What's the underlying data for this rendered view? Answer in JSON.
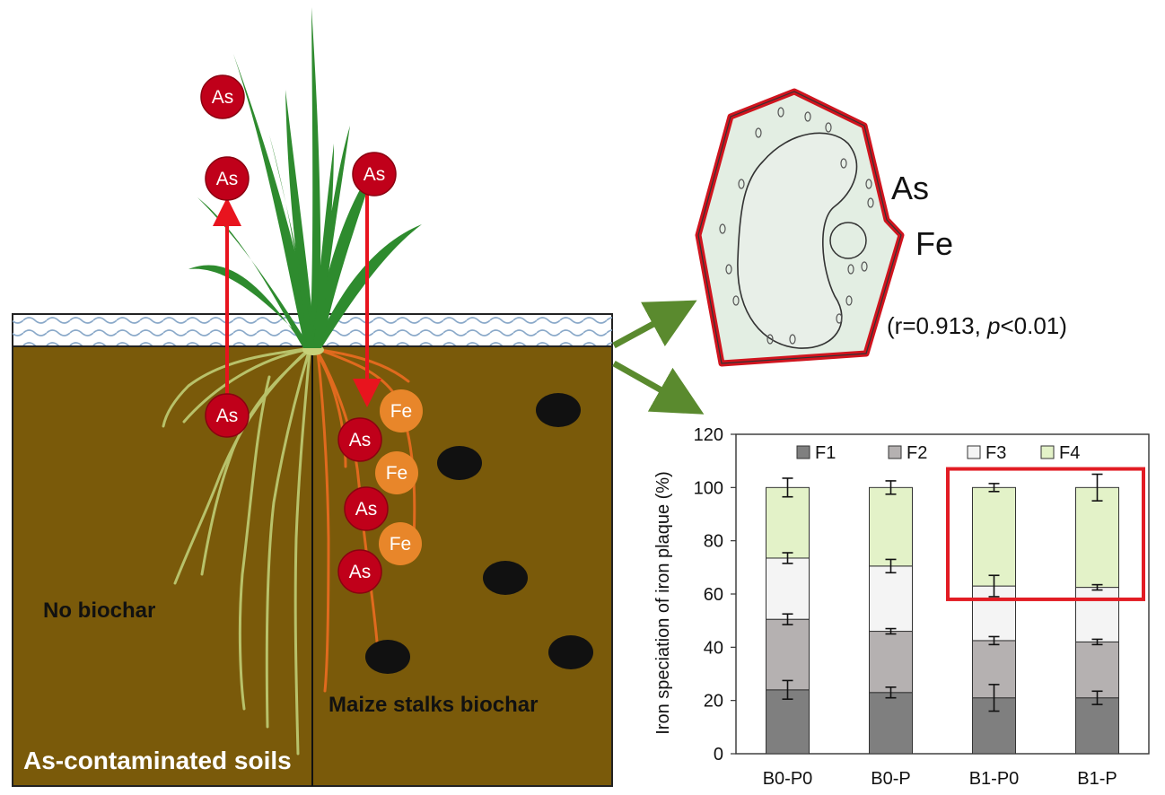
{
  "diagram": {
    "soil_label": "As-contaminated soils",
    "no_biochar_label": "No biochar",
    "biochar_label": "Maize stalks biochar",
    "ion_as": "As",
    "ion_fe": "Fe",
    "cell_label_as": "As",
    "cell_label_fe": "Fe",
    "correlation_prefix": "(r=0.913, ",
    "correlation_p": "p",
    "correlation_suffix": "<0.01)",
    "colors": {
      "soil": "#7a5a0a",
      "as_ion": "#c0001a",
      "fe_ion": "#e8862a",
      "arrow": "#e8141e",
      "leaf": "#2e8b2e",
      "cell_wall": "#d0141e",
      "cell_fill": "#e3eee3",
      "highlight_box": "#e21c24"
    }
  },
  "chart_data": {
    "type": "bar",
    "stacked": true,
    "categories": [
      "B0-P0",
      "B0-P",
      "B1-P0",
      "B1-P"
    ],
    "series": [
      {
        "name": "F1",
        "values": [
          24,
          23,
          21,
          21
        ],
        "errors": [
          3.5,
          2,
          5,
          2.5
        ],
        "color": "#7f7f7f"
      },
      {
        "name": "F2",
        "values": [
          26.5,
          23,
          21.5,
          21
        ],
        "errors": [
          2,
          1,
          1.5,
          1
        ],
        "color": "#b5b1b1"
      },
      {
        "name": "F3",
        "values": [
          23,
          24.5,
          20.5,
          20.5
        ],
        "errors": [
          2,
          2.5,
          4,
          1
        ],
        "color": "#f4f4f4"
      },
      {
        "name": "F4",
        "values": [
          26.5,
          29.5,
          37,
          37.5
        ],
        "errors": [
          3.5,
          2.5,
          1.5,
          5
        ],
        "color": "#e3f2c8"
      }
    ],
    "ylabel": "Iron speciation of iron plaque (%)",
    "ylim": [
      0,
      120
    ],
    "yticks": [
      "0",
      "20",
      "40",
      "60",
      "80",
      "100",
      "120"
    ],
    "legend": "top",
    "grid": false,
    "highlight": [
      "B1-P0",
      "B1-P"
    ]
  }
}
